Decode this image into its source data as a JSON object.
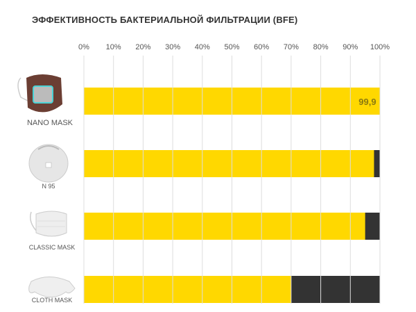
{
  "chart_data": {
    "type": "bar",
    "orientation": "horizontal",
    "title": "ЭФФЕКТИВНОСТЬ БАКТЕРИАЛЬНОЙ ФИЛЬТРАЦИИ (BFE)",
    "categories": [
      "NANO MASK",
      "N 95",
      "CLASSIC MASK",
      "CLOTH MASK"
    ],
    "icons": [
      "nano-mask-image",
      "n95-respirator-image",
      "classic-mask-image",
      "cloth-mask-image"
    ],
    "values": [
      99.9,
      98,
      95,
      70
    ],
    "data_labels": [
      "99,9",
      "",
      "",
      ""
    ],
    "xlim": [
      0,
      100
    ],
    "x_ticks": [
      "0%",
      "10%",
      "20%",
      "30%",
      "40%",
      "50%",
      "60%",
      "70%",
      "80%",
      "90%",
      "100%"
    ],
    "grid": true,
    "colors": {
      "bar": "#FFD800",
      "remainder": "#333333",
      "grid": "#dddddd",
      "label": "#8a7a10"
    }
  }
}
